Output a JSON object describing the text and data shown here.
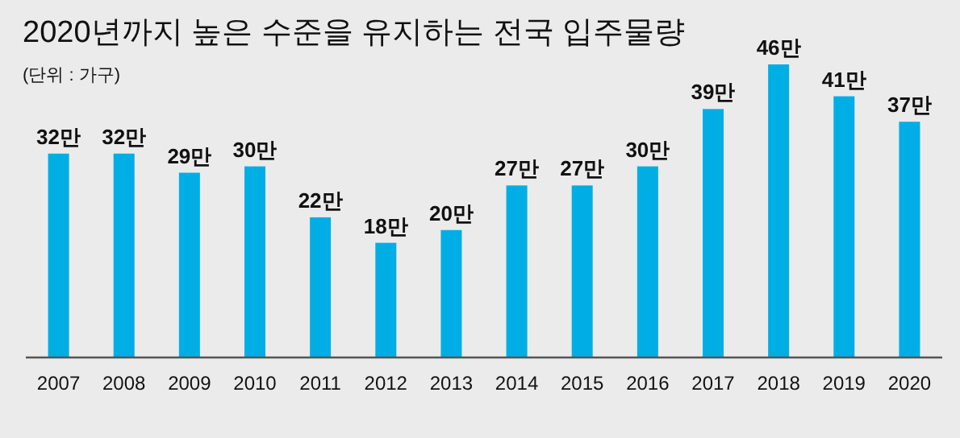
{
  "chart_data": {
    "type": "bar",
    "title": "2020년까지 높은 수준을 유지하는 전국 입주물량",
    "subtitle": "(단위 : 가구)",
    "categories": [
      "2007",
      "2008",
      "2009",
      "2010",
      "2011",
      "2012",
      "2013",
      "2014",
      "2015",
      "2016",
      "2017",
      "2018",
      "2019",
      "2020"
    ],
    "values": [
      32,
      32,
      29,
      30,
      22,
      18,
      20,
      27,
      27,
      30,
      39,
      46,
      41,
      37
    ],
    "value_labels": [
      "32만",
      "32만",
      "29만",
      "30만",
      "22만",
      "18만",
      "20만",
      "27만",
      "27만",
      "30만",
      "39만",
      "46만",
      "41만",
      "37만"
    ],
    "color": "#00aee6"
  }
}
